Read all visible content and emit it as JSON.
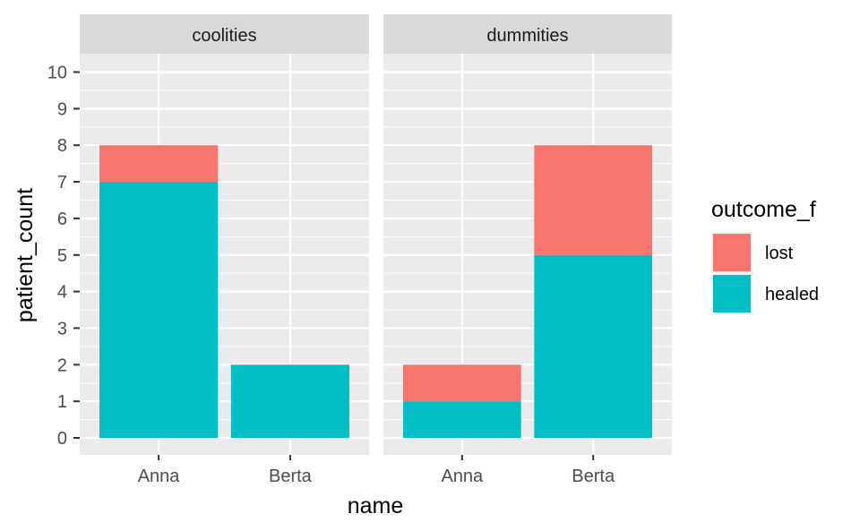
{
  "chart_data": {
    "type": "bar",
    "stacked": true,
    "facet_by": "group",
    "facets": [
      "coolities",
      "dummities"
    ],
    "categories": [
      "Anna",
      "Berta"
    ],
    "series": [
      {
        "name": "lost",
        "color": "#F8766D",
        "values": {
          "coolities": [
            1,
            0
          ],
          "dummities": [
            1,
            3
          ]
        }
      },
      {
        "name": "healed",
        "color": "#00BFC4",
        "values": {
          "coolities": [
            7,
            2
          ],
          "dummities": [
            1,
            5
          ]
        }
      }
    ],
    "xlabel": "name",
    "ylabel": "patient_count",
    "ylim": [
      0,
      10
    ],
    "yticks": [
      0,
      1,
      2,
      3,
      4,
      5,
      6,
      7,
      8,
      9,
      10
    ],
    "legend": {
      "title": "outcome_f",
      "position": "right",
      "entries": [
        "lost",
        "healed"
      ]
    },
    "grid": true,
    "panel_background": "#EBEBEB",
    "strip_background": "#D9D9D9"
  }
}
